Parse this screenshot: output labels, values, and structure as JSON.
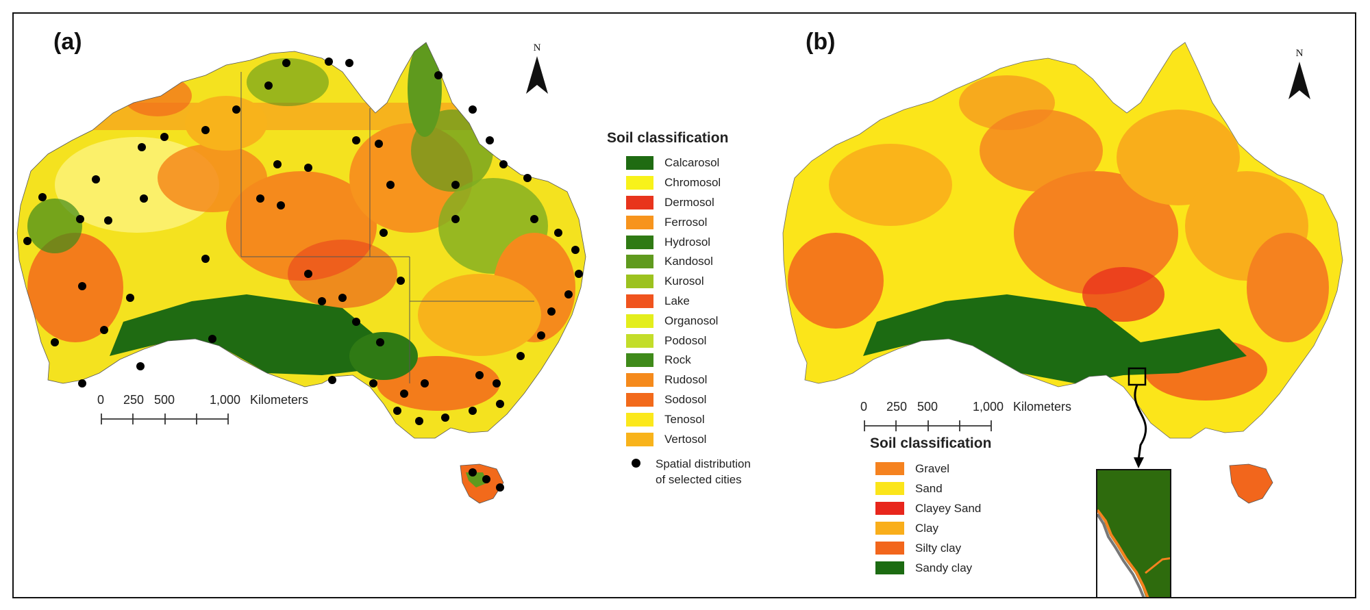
{
  "panels": {
    "a": {
      "label": "(a)",
      "north_label": "N",
      "legend_title": "Soil classification",
      "legend": [
        {
          "label": "Calcarosol",
          "color": "#1f6b12"
        },
        {
          "label": "Chromosol",
          "color": "#f8f21a"
        },
        {
          "label": "Dermosol",
          "color": "#e8341c"
        },
        {
          "label": "Ferrosol",
          "color": "#f7941d"
        },
        {
          "label": "Hydrosol",
          "color": "#2f7a14"
        },
        {
          "label": "Kandosol",
          "color": "#5f9a1e"
        },
        {
          "label": "Kurosol",
          "color": "#9cc21f"
        },
        {
          "label": "Lake",
          "color": "#f0541e"
        },
        {
          "label": "Organosol",
          "color": "#e3ee1c"
        },
        {
          "label": "Podosol",
          "color": "#c3dd2a"
        },
        {
          "label": "Rock",
          "color": "#3f8a1a"
        },
        {
          "label": "Rudosol",
          "color": "#f58a1c"
        },
        {
          "label": "Sodosol",
          "color": "#f26a1b"
        },
        {
          "label": "Tenosol",
          "color": "#fbe81c"
        },
        {
          "label": "Vertosol",
          "color": "#f8b31b"
        }
      ],
      "city_key_label": "Spatial distribution of selected cities",
      "scale": {
        "labels": [
          "0",
          "250",
          "500",
          "1,000"
        ],
        "unit": "Kilometers"
      }
    },
    "b": {
      "label": "(b)",
      "north_label": "N",
      "legend_title": "Soil classification",
      "legend": [
        {
          "label": "Gravel",
          "color": "#f5821f"
        },
        {
          "label": "Sand",
          "color": "#fbe51a"
        },
        {
          "label": "Clayey Sand",
          "color": "#e8261c"
        },
        {
          "label": "Clay",
          "color": "#f9ae1b"
        },
        {
          "label": "Silty clay",
          "color": "#f2661c"
        },
        {
          "label": "Sandy clay",
          "color": "#1c6b12"
        }
      ],
      "scale": {
        "labels": [
          "0",
          "250",
          "500",
          "1,000"
        ],
        "unit": "Kilometers"
      }
    }
  }
}
